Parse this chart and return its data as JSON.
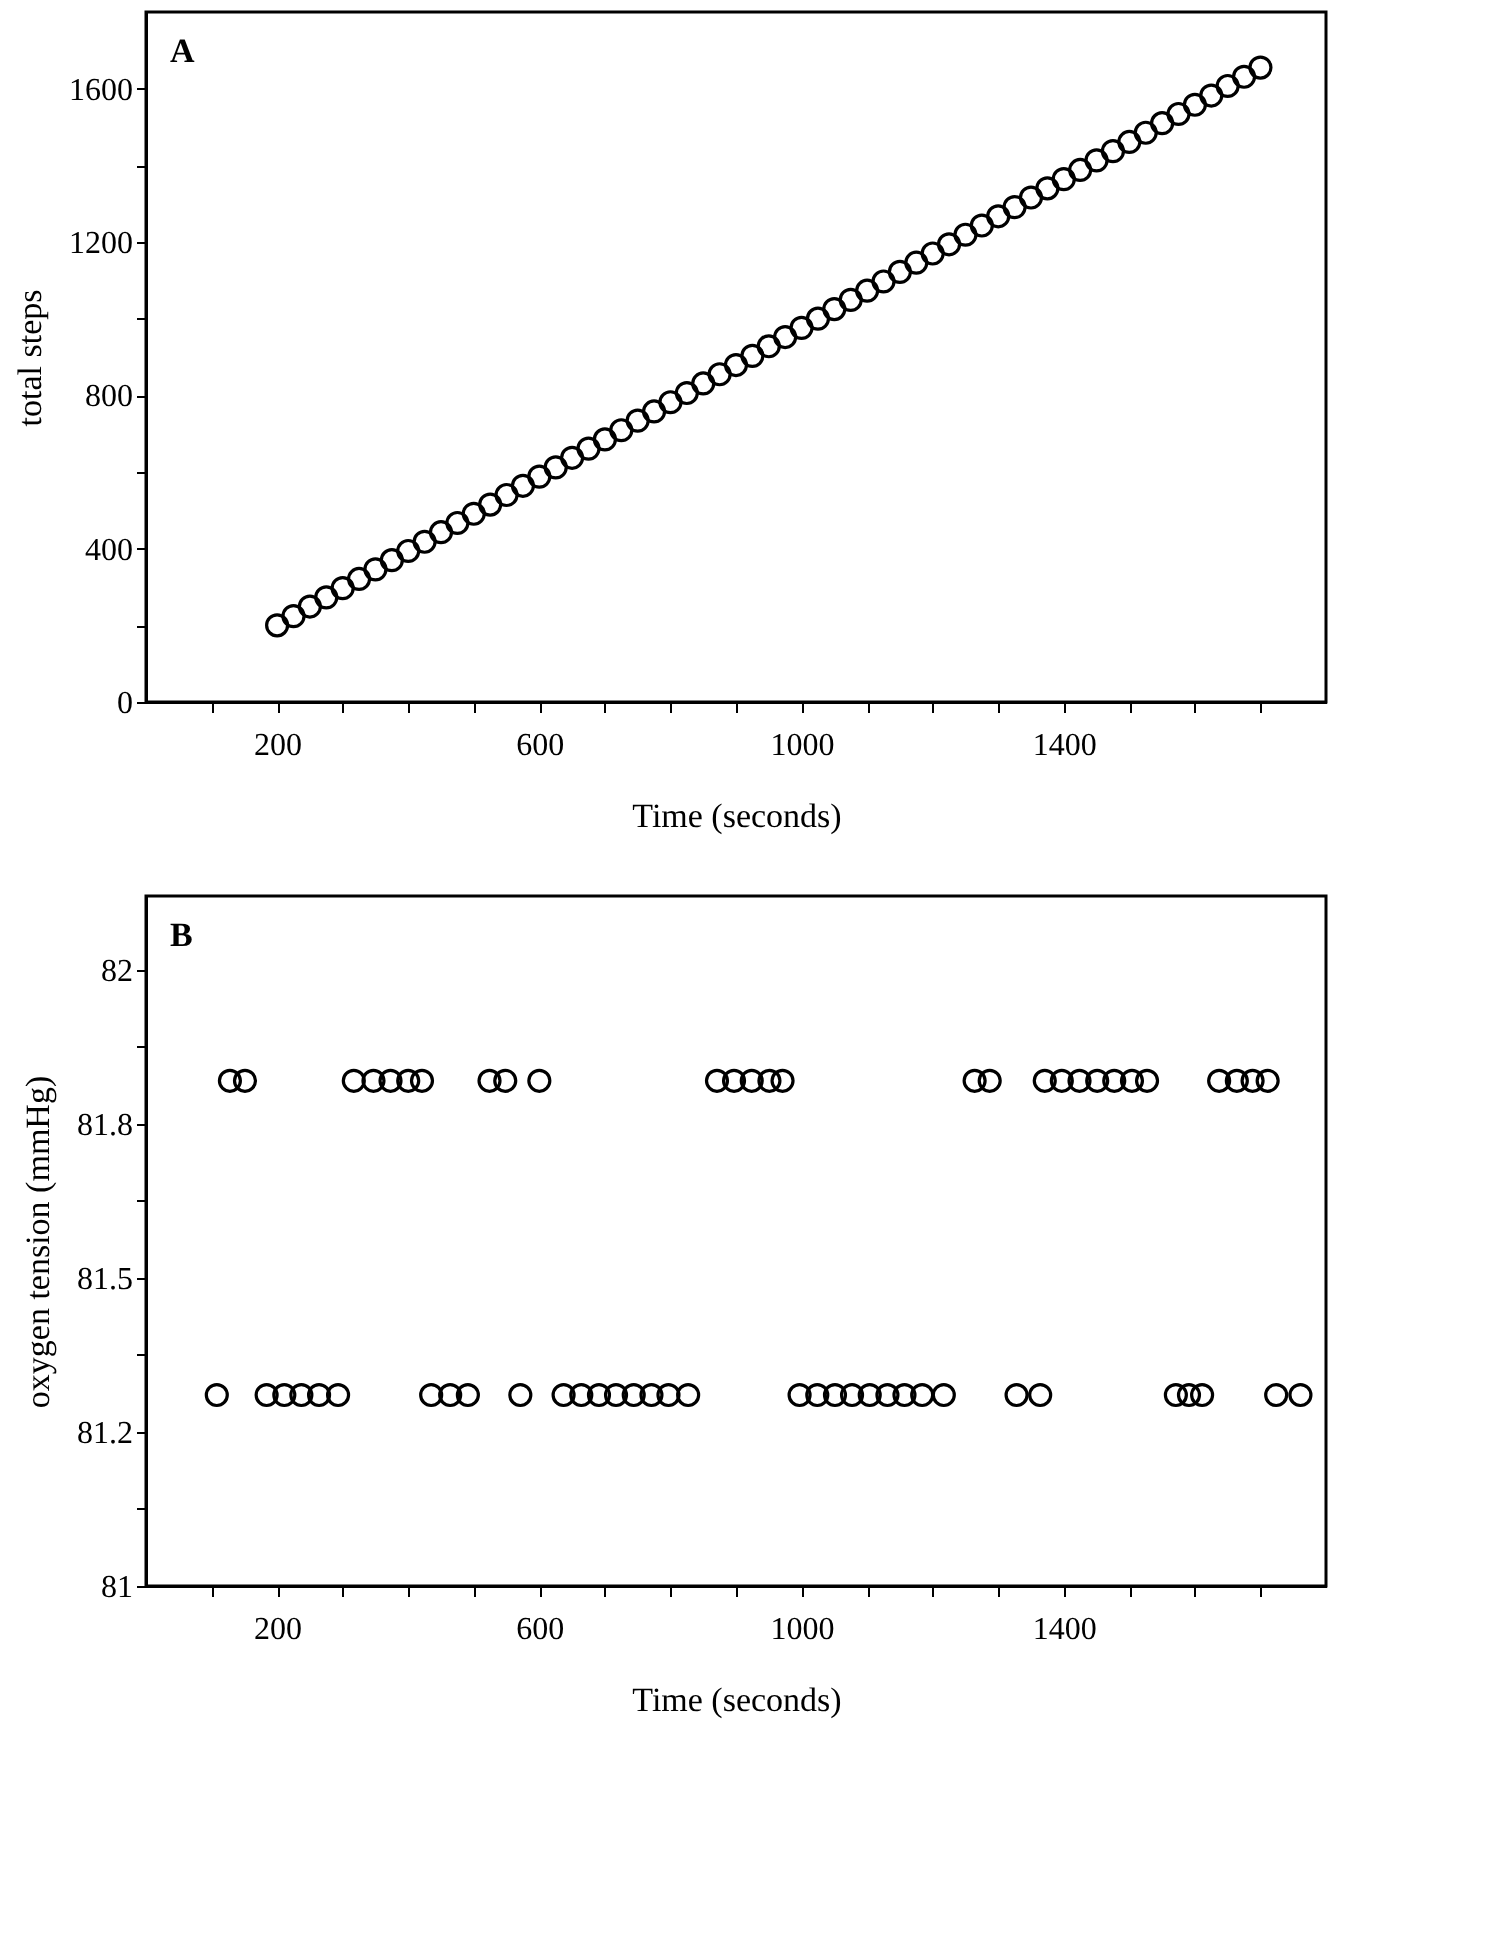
{
  "chart_data": [
    {
      "type": "scatter",
      "xlabel": "Time (seconds)",
      "ylabel": "total steps",
      "annotations": [
        "A"
      ],
      "marker": "circle",
      "grid": false,
      "xlim": [
        0,
        1800
      ],
      "ylim": [
        0,
        1800
      ],
      "xticks": [
        {
          "value": 100,
          "label": null
        },
        200,
        {
          "value": 300,
          "label": null
        },
        {
          "value": 400,
          "label": null
        },
        {
          "value": 500,
          "label": null
        },
        600,
        {
          "value": 700,
          "label": null
        },
        {
          "value": 800,
          "label": null
        },
        {
          "value": 900,
          "label": null
        },
        1000,
        {
          "value": 1100,
          "label": null
        },
        {
          "value": 1200,
          "label": null
        },
        {
          "value": 1300,
          "label": null
        },
        1400,
        {
          "value": 1500,
          "label": null
        },
        {
          "value": 1600,
          "label": null
        },
        {
          "value": 1700,
          "label": null
        }
      ],
      "yticks": [
        0,
        {
          "value": 200,
          "label": null
        },
        400,
        {
          "value": 600,
          "label": null
        },
        800,
        {
          "value": 1000,
          "label": null
        },
        1200,
        {
          "value": 1400,
          "label": null
        },
        1600
      ],
      "series": [
        {
          "color": "#000000",
          "x": [
            200,
            225,
            250,
            275,
            300,
            325,
            350,
            375,
            400,
            425,
            450,
            475,
            500,
            525,
            550,
            575,
            600,
            625,
            650,
            675,
            700,
            725,
            750,
            775,
            800,
            825,
            850,
            875,
            900,
            925,
            950,
            975,
            1000,
            1025,
            1050,
            1075,
            1100,
            1125,
            1150,
            1175,
            1200,
            1225,
            1250,
            1275,
            1300,
            1325,
            1350,
            1375,
            1400,
            1425,
            1450,
            1475,
            1500,
            1525,
            1550,
            1575,
            1600,
            1625,
            1650,
            1675,
            1700
          ],
          "values": [
            200,
            224,
            249,
            273,
            297,
            321,
            346,
            370,
            394,
            418,
            443,
            467,
            491,
            515,
            540,
            564,
            588,
            612,
            637,
            661,
            685,
            709,
            734,
            758,
            782,
            806,
            831,
            855,
            879,
            903,
            928,
            952,
            976,
            1000,
            1025,
            1049,
            1073,
            1097,
            1122,
            1146,
            1170,
            1194,
            1219,
            1243,
            1267,
            1291,
            1316,
            1340,
            1364,
            1388,
            1413,
            1437,
            1461,
            1485,
            1510,
            1534,
            1558,
            1582,
            1607,
            1631,
            1655
          ]
        }
      ]
    },
    {
      "type": "scatter",
      "xlabel": "Time (seconds)",
      "ylabel": "oxygen tension (mmHg)",
      "annotations": [
        "B"
      ],
      "marker": "circle",
      "grid": false,
      "xlim": [
        0,
        1800
      ],
      "ylim": [
        81,
        82.12
      ],
      "xticks": [
        {
          "value": 100,
          "label": null
        },
        200,
        {
          "value": 300,
          "label": null
        },
        {
          "value": 400,
          "label": null
        },
        {
          "value": 500,
          "label": null
        },
        600,
        {
          "value": 700,
          "label": null
        },
        {
          "value": 800,
          "label": null
        },
        {
          "value": 900,
          "label": null
        },
        1000,
        {
          "value": 1100,
          "label": null
        },
        {
          "value": 1200,
          "label": null
        },
        {
          "value": 1300,
          "label": null
        },
        1400,
        {
          "value": 1500,
          "label": null
        },
        {
          "value": 1600,
          "label": null
        },
        {
          "value": 1700,
          "label": null
        }
      ],
      "yticks": [
        81,
        {
          "value": 81.125,
          "label": null
        },
        {
          "value": 81.25,
          "label": "81.2"
        },
        {
          "value": 81.375,
          "label": null
        },
        81.5,
        {
          "value": 81.625,
          "label": null
        },
        {
          "value": 81.75,
          "label": "81.8"
        },
        {
          "value": 81.875,
          "label": null
        },
        82
      ],
      "series": [
        {
          "color": "#000000",
          "x": [
            128,
            151,
            317,
            347,
            373,
            400,
            421,
            524,
            548,
            600,
            871,
            897,
            924,
            951,
            971,
            1264,
            1287,
            1371,
            1397,
            1424,
            1451,
            1477,
            1504,
            1527,
            1637,
            1664,
            1688,
            1711,
            108,
            184,
            211,
            237,
            264,
            293,
            435,
            464,
            491,
            571,
            637,
            664,
            691,
            717,
            744,
            771,
            797,
            827,
            997,
            1024,
            1051,
            1077,
            1104,
            1131,
            1157,
            1184,
            1217,
            1328,
            1364,
            1571,
            1591,
            1611,
            1724,
            1761
          ],
          "values": [
            81.82,
            81.82,
            81.82,
            81.82,
            81.82,
            81.82,
            81.82,
            81.82,
            81.82,
            81.82,
            81.82,
            81.82,
            81.82,
            81.82,
            81.82,
            81.82,
            81.82,
            81.82,
            81.82,
            81.82,
            81.82,
            81.82,
            81.82,
            81.82,
            81.82,
            81.82,
            81.82,
            81.82,
            81.31,
            81.31,
            81.31,
            81.31,
            81.31,
            81.31,
            81.31,
            81.31,
            81.31,
            81.31,
            81.31,
            81.31,
            81.31,
            81.31,
            81.31,
            81.31,
            81.31,
            81.31,
            81.31,
            81.31,
            81.31,
            81.31,
            81.31,
            81.31,
            81.31,
            81.31,
            81.31,
            81.31,
            81.31,
            81.31,
            81.31,
            81.31,
            81.31,
            81.31
          ]
        }
      ]
    }
  ]
}
